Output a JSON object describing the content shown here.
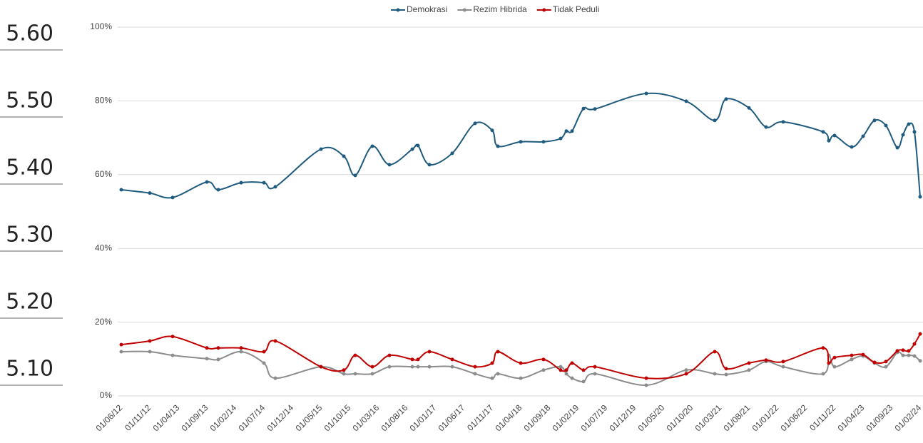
{
  "background_labels": [
    "5.60",
    "5.50",
    "5.40",
    "5.30",
    "5.20",
    "5.10"
  ],
  "chart_data": {
    "type": "line",
    "x": [
      "01/06/12",
      "01/11/12",
      "01/03/13",
      "01/09/13",
      "01/11/13",
      "01/03/14",
      "01/07/14",
      "01/09/14",
      "01/05/15",
      "01/09/15",
      "01/11/15",
      "01/02/16",
      "01/05/16",
      "01/09/16",
      "01/10/16",
      "01/12/16",
      "01/04/17",
      "01/08/17",
      "01/11/17",
      "01/12/17",
      "01/04/18",
      "01/08/18",
      "01/11/18",
      "01/12/18",
      "01/01/19",
      "01/03/19",
      "01/05/19",
      "01/02/20",
      "01/09/20",
      "01/02/21",
      "01/04/21",
      "01/08/21",
      "01/11/21",
      "01/02/22",
      "01/09/22",
      "01/10/22",
      "01/11/22",
      "01/02/23",
      "01/04/23",
      "01/06/23",
      "01/08/23",
      "01/10/23",
      "01/11/23",
      "01/12/23",
      "01/01/24",
      "01/02/24"
    ],
    "series": [
      {
        "name": "Demokrasi",
        "color": "#1f5b7e",
        "values": [
          55.9,
          55.0,
          53.8,
          58.0,
          55.9,
          57.8,
          57.8,
          56.7,
          66.9,
          65.0,
          59.8,
          67.7,
          62.7,
          66.9,
          67.9,
          62.7,
          65.8,
          73.9,
          72.0,
          67.7,
          68.9,
          68.9,
          69.8,
          71.8,
          71.8,
          77.9,
          77.8,
          82.0,
          79.9,
          74.7,
          80.5,
          78.1,
          72.9,
          74.3,
          71.6,
          69.2,
          70.6,
          67.5,
          70.4,
          74.7,
          73.3,
          67.3,
          70.8,
          73.7,
          71.6,
          54.0
        ]
      },
      {
        "name": "Rezim Hibrida",
        "color": "#8c8c8c",
        "values": [
          12.0,
          12.0,
          11.0,
          10.1,
          9.9,
          12.0,
          8.9,
          4.8,
          7.9,
          6.0,
          6.0,
          6.0,
          7.9,
          7.9,
          7.9,
          7.9,
          7.9,
          6.0,
          4.8,
          6.0,
          4.8,
          7.0,
          7.9,
          6.0,
          4.8,
          3.9,
          6.0,
          2.9,
          7.0,
          6.0,
          5.8,
          7.0,
          9.3,
          7.9,
          6.0,
          11.0,
          7.9,
          9.9,
          10.8,
          8.9,
          7.9,
          11.8,
          11.0,
          11.0,
          10.8,
          9.5
        ]
      },
      {
        "name": "Tidak Peduli",
        "color": "#c00000",
        "values": [
          13.9,
          14.9,
          16.1,
          13.0,
          13.0,
          13.0,
          12.0,
          14.9,
          7.9,
          7.0,
          11.0,
          7.9,
          11.0,
          9.9,
          9.9,
          12.0,
          9.9,
          7.9,
          8.9,
          12.0,
          8.9,
          9.9,
          7.0,
          7.0,
          8.9,
          7.0,
          7.9,
          4.8,
          6.0,
          12.0,
          7.4,
          8.9,
          9.7,
          9.3,
          13.0,
          8.9,
          10.4,
          11.0,
          11.2,
          9.1,
          9.3,
          12.2,
          12.4,
          12.2,
          14.1,
          16.8
        ]
      }
    ],
    "xlim": [
      "01/06/12",
      "01/02/24"
    ],
    "xticks": [
      "01/06/12",
      "01/11/12",
      "01/04/13",
      "01/09/13",
      "01/02/14",
      "01/07/14",
      "01/12/14",
      "01/05/15",
      "01/10/15",
      "01/03/16",
      "01/08/16",
      "01/01/17",
      "01/06/17",
      "01/11/17",
      "01/04/18",
      "01/09/18",
      "01/02/19",
      "01/07/19",
      "01/12/19",
      "01/05/20",
      "01/10/20",
      "01/03/21",
      "01/08/21",
      "01/01/22",
      "01/06/22",
      "01/11/22",
      "01/04/23",
      "01/09/23",
      "01/02/24"
    ],
    "ylim": [
      0,
      100
    ],
    "yticks": [
      {
        "value": 0,
        "label": "0%"
      },
      {
        "value": 20,
        "label": "20%"
      },
      {
        "value": 40,
        "label": "40%"
      },
      {
        "value": 60,
        "label": "60%"
      },
      {
        "value": 80,
        "label": "80%"
      },
      {
        "value": 100,
        "label": "100%"
      }
    ],
    "grid": true,
    "legend": "top"
  }
}
